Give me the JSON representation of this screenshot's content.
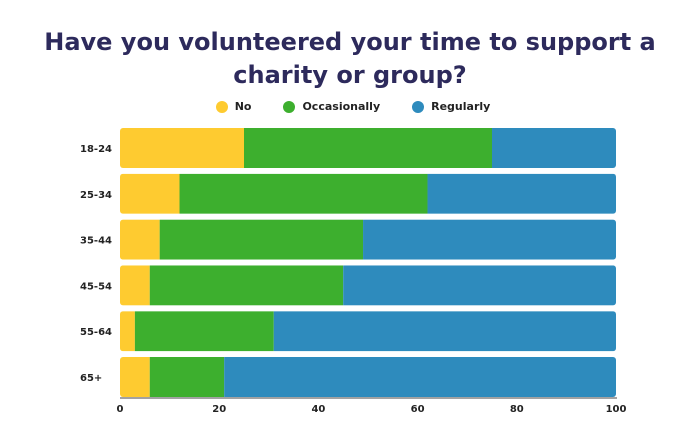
{
  "colors": {
    "no": "#fecb30",
    "occasionally": "#3daf2e",
    "regularly": "#2e8bbd",
    "title": "#2d2a5c"
  },
  "chart_data": {
    "type": "bar",
    "orientation": "horizontal",
    "stacked": true,
    "title": "Have you volunteered your time to support a charity or group?",
    "categories": [
      "18-24",
      "25-34",
      "35-44",
      "45-54",
      "55-64",
      "65+"
    ],
    "series": [
      {
        "name": "No",
        "values": [
          25,
          12,
          8,
          6,
          3,
          6
        ]
      },
      {
        "name": "Occasionally",
        "values": [
          50,
          50,
          41,
          39,
          28,
          15
        ]
      },
      {
        "name": "Regularly",
        "values": [
          25,
          38,
          51,
          55,
          69,
          79
        ]
      }
    ],
    "xlim": [
      0,
      100
    ],
    "xticks": [
      "0",
      "20",
      "40",
      "60",
      "80",
      "100"
    ],
    "legend_position": "top-center",
    "grid": false
  }
}
